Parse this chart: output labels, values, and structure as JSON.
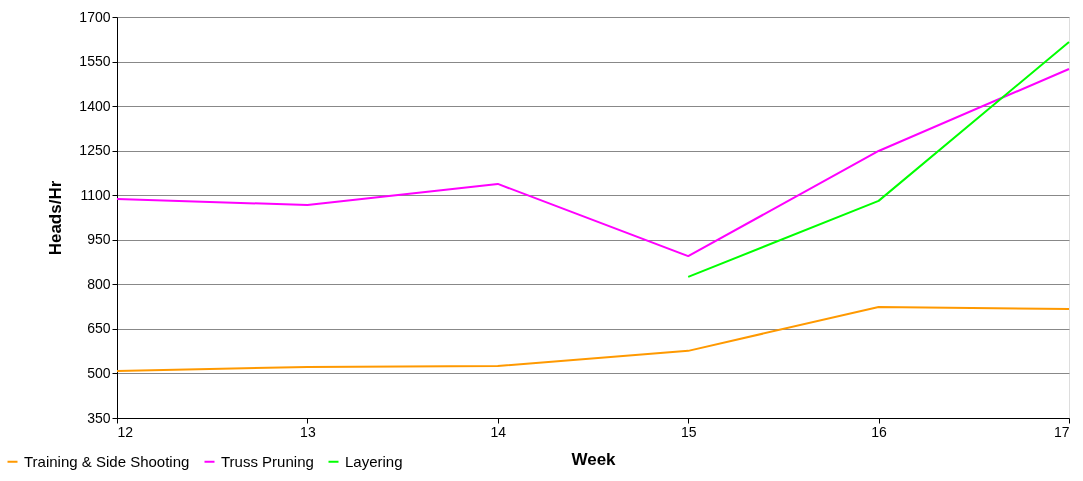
{
  "chart_data": {
    "type": "line",
    "xlabel": "Week",
    "ylabel": "Heads/Hr",
    "x": [
      12,
      13,
      14,
      15,
      16,
      17
    ],
    "series": [
      {
        "name": "Training & Side Shooting",
        "color": "#ff9900",
        "values": [
          508,
          522,
          525,
          576,
          724,
          717
        ]
      },
      {
        "name": "Truss Pruning",
        "color": "#ff00ff",
        "values": [
          1087,
          1067,
          1138,
          895,
          1249,
          1525
        ]
      },
      {
        "name": "Layering",
        "color": "#00ff00",
        "values": [
          null,
          null,
          null,
          825,
          1081,
          1616
        ]
      }
    ],
    "xlim": [
      12,
      17
    ],
    "xticks": [
      12,
      13,
      14,
      15,
      16,
      17
    ],
    "ylim": [
      350,
      1700
    ],
    "yticks": [
      350,
      500,
      650,
      800,
      950,
      1100,
      1250,
      1400,
      1550,
      1700
    ],
    "grid": "y",
    "legend": "bottom left",
    "marker": "none",
    "line_style": "solid"
  }
}
